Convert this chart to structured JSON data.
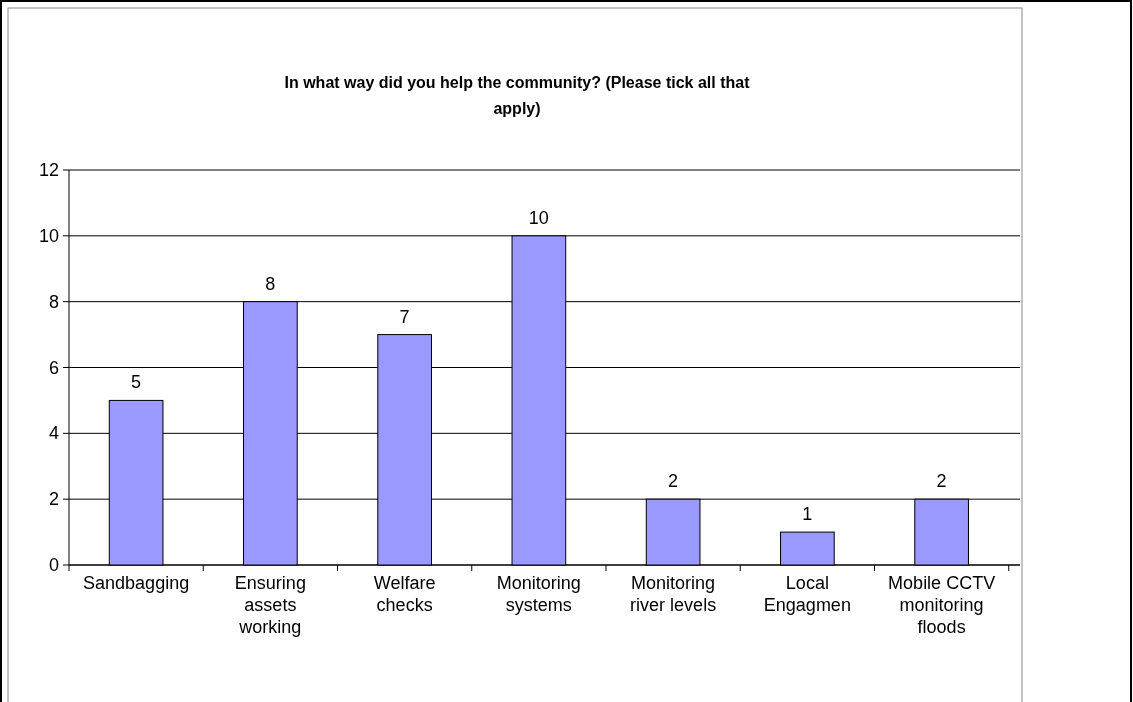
{
  "chart_data": {
    "type": "bar",
    "title": "In what way did you help the community? (Please tick all that apply)",
    "categories": [
      "Sandbagging",
      "Ensuring assets working",
      "Welfare checks",
      "Monitoring systems",
      "Monitoring river levels",
      "Local Engagmen",
      "Mobile CCTV monitoring floods",
      null
    ],
    "values": [
      5,
      8,
      7,
      10,
      2,
      1,
      2,
      null
    ],
    "color": "#9999ff",
    "ylim": [
      0,
      12
    ],
    "yticks": [
      0,
      2,
      4,
      6,
      8,
      10,
      12
    ],
    "grid": "y",
    "data_labels": true
  }
}
